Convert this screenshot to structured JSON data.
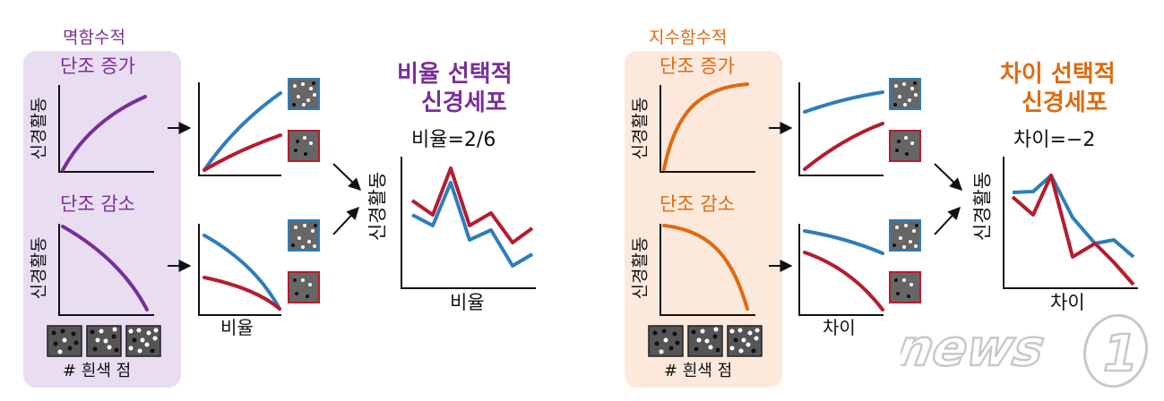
{
  "left": {
    "function_label": "멱함수적",
    "increase_label": "단조 증가",
    "decrease_label": "단조 감소",
    "y_axis_label": "신경활동",
    "x_axis_label": "# 흰색 점",
    "middle_x_label": "비율",
    "title_line1": "비율 선택적",
    "title_line2": "신경세포",
    "equation": "비율=2/6",
    "result_y_label": "신경활동",
    "result_x_label": "비율",
    "accent_color": "#7a2e9a",
    "bg_color": "#e9ddf2"
  },
  "right": {
    "function_label": "지수함수적",
    "increase_label": "단조 증가",
    "decrease_label": "단조 감소",
    "y_axis_label": "신경활동",
    "x_axis_label": "# 흰색 점",
    "middle_x_label": "차이",
    "title_line1": "차이 선택적",
    "title_line2": "신경세포",
    "equation": "차이=−2",
    "result_y_label": "신경활동",
    "result_x_label": "차이",
    "accent_color": "#e0690f",
    "bg_color": "#fde9dc"
  },
  "series_colors": {
    "blue": "#2e7dbd",
    "red": "#b51c2e"
  },
  "watermark": {
    "brand": "news",
    "mark": "1"
  }
}
